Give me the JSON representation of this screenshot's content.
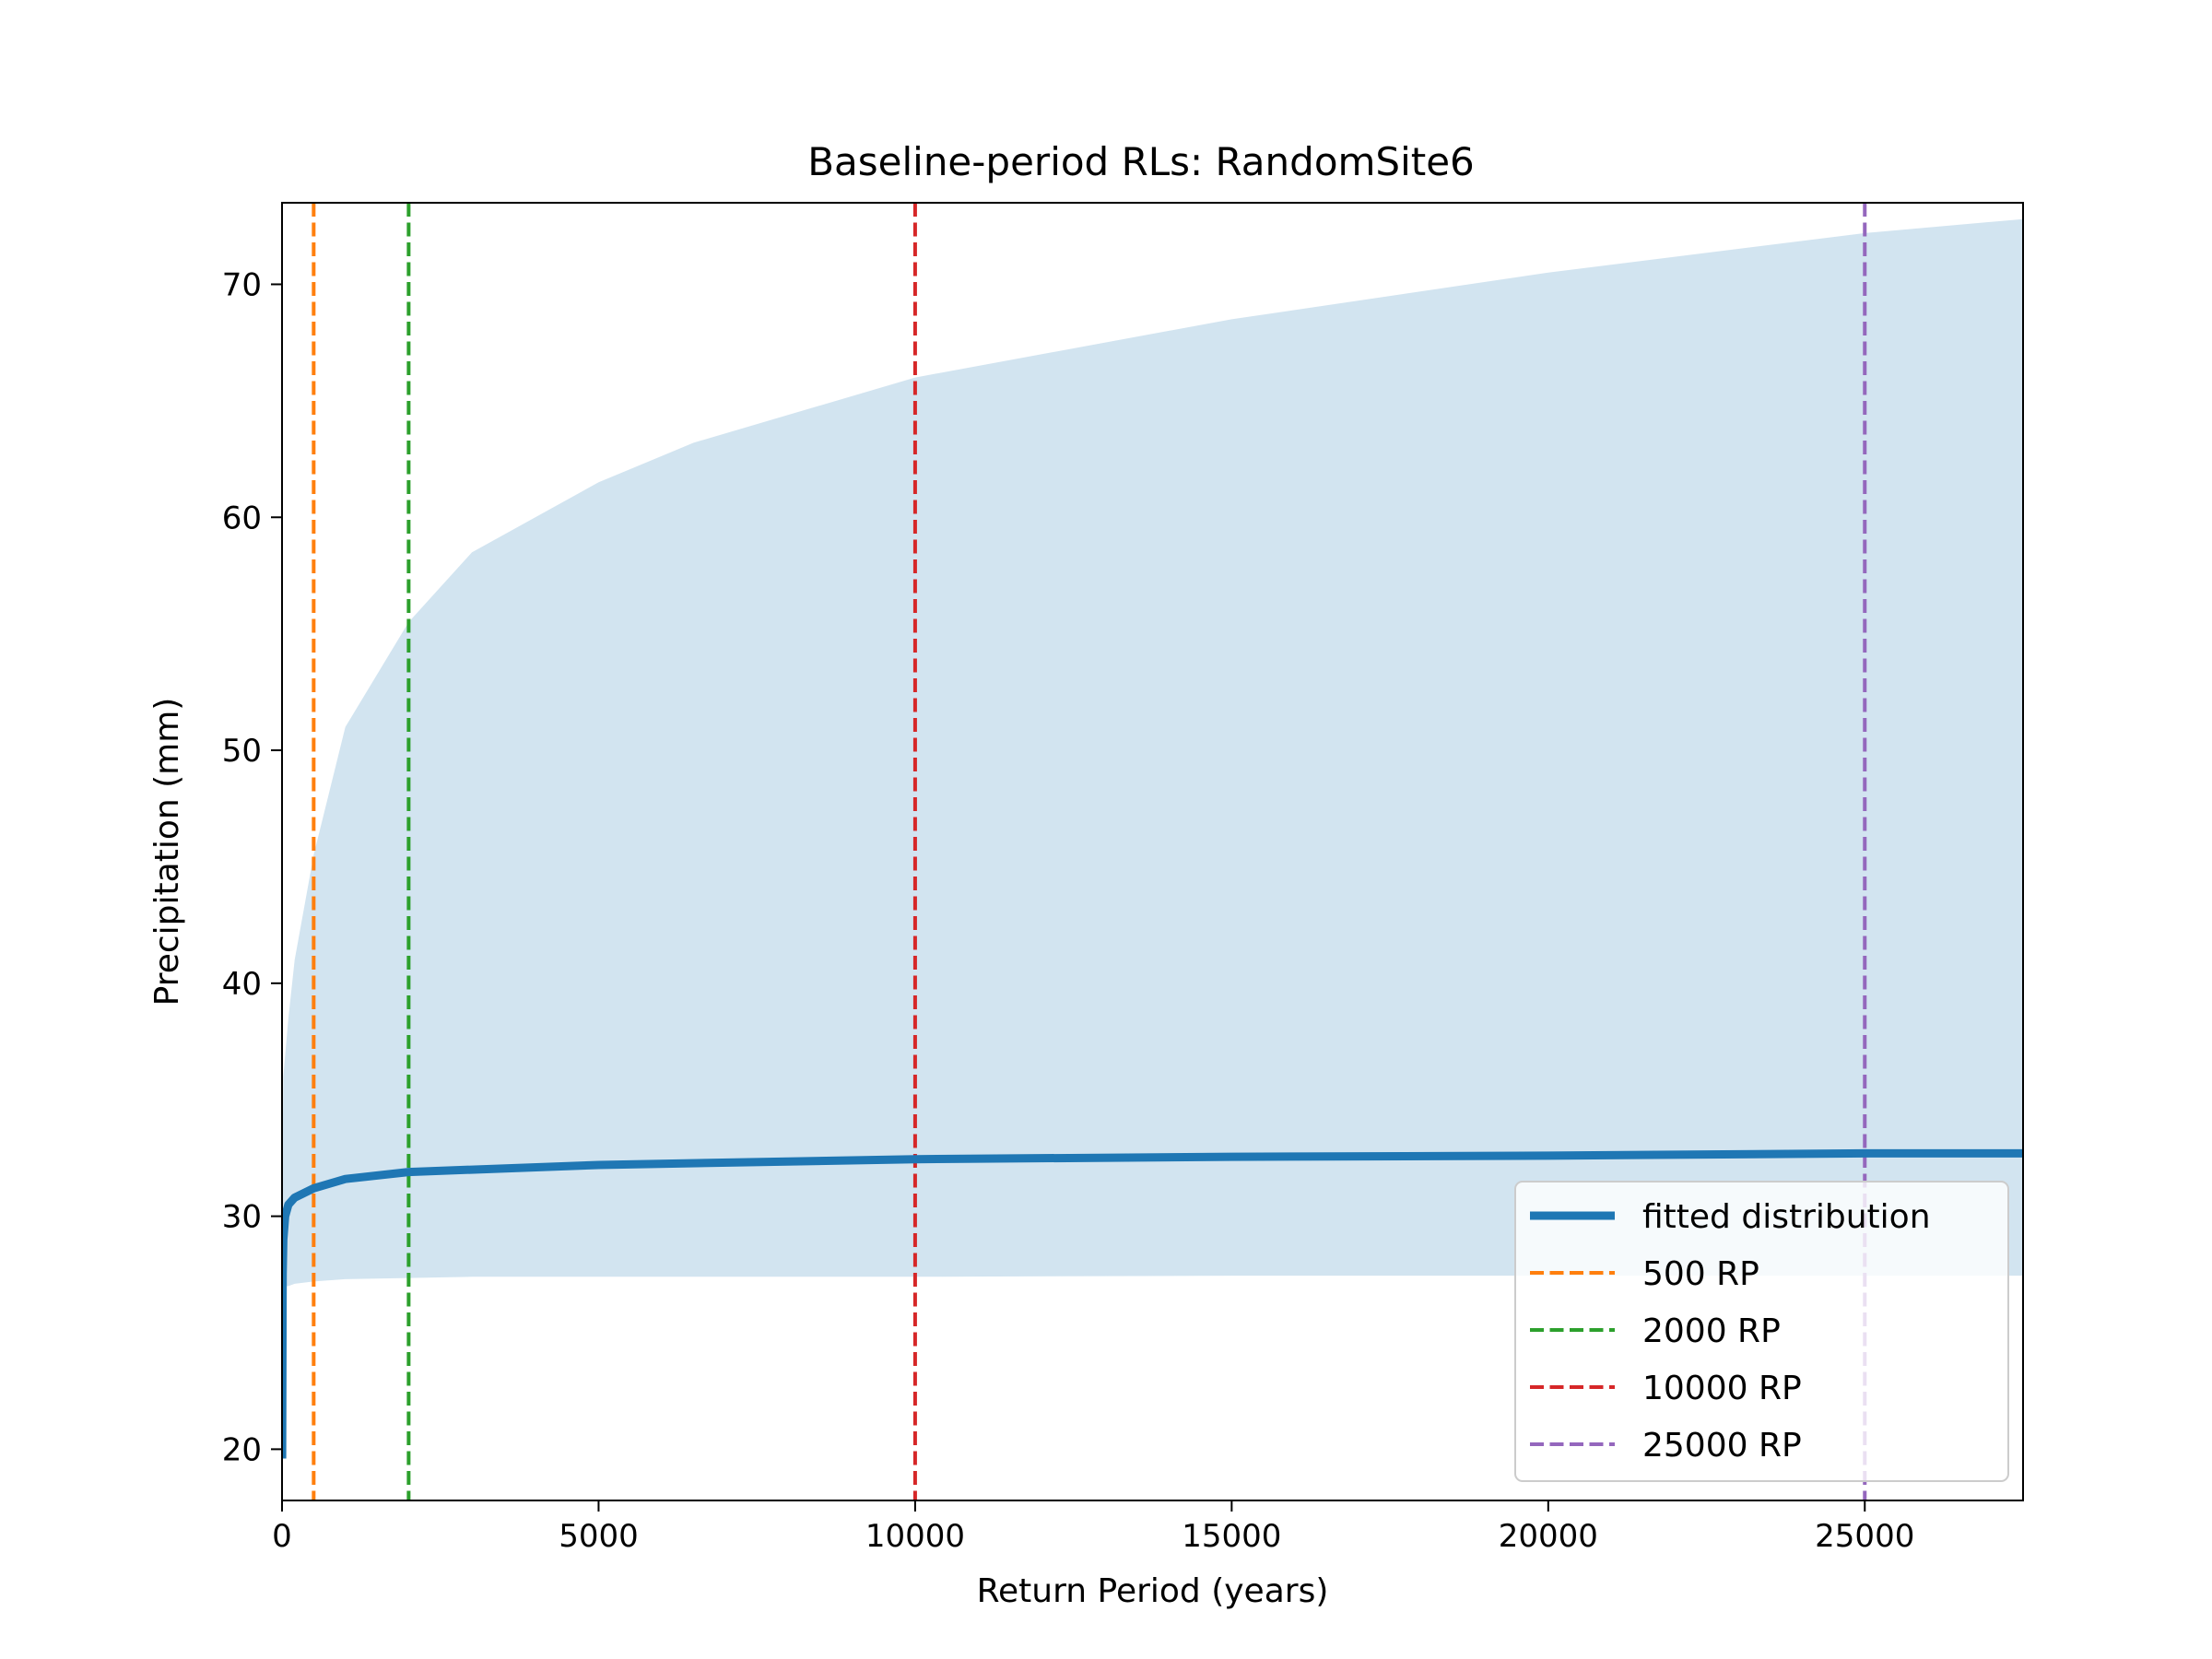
{
  "chart_data": {
    "type": "line",
    "title": "Baseline-period RLs: RandomSite6",
    "xlabel": "Return Period (years)",
    "ylabel": "Precipitation (mm)",
    "xlim": [
      0,
      27500
    ],
    "ylim": [
      17.8,
      73.5
    ],
    "x_ticks": [
      0,
      5000,
      10000,
      15000,
      20000,
      25000
    ],
    "y_ticks": [
      20,
      30,
      40,
      50,
      60,
      70
    ],
    "grid": false,
    "legend_position": "lower-right",
    "fitted": {
      "name": "fitted distribution",
      "color": "#1f77b4",
      "x": [
        2,
        10,
        20,
        50,
        100,
        200,
        500,
        1000,
        2000,
        5000,
        10000,
        15000,
        20000,
        25000,
        27500
      ],
      "y": [
        19.6,
        27.5,
        29.0,
        30.0,
        30.5,
        30.8,
        31.2,
        31.6,
        31.9,
        32.2,
        32.45,
        32.55,
        32.6,
        32.7,
        32.7
      ]
    },
    "confidence_band": {
      "color": "#1f77b4",
      "opacity": 0.2,
      "x": [
        2,
        20,
        100,
        200,
        500,
        1000,
        2000,
        3000,
        5000,
        6500,
        10000,
        15000,
        20000,
        25000,
        27500
      ],
      "upper": [
        30.5,
        36.0,
        38.5,
        41.0,
        45.5,
        51.0,
        55.5,
        58.5,
        61.5,
        63.2,
        66.0,
        68.5,
        70.5,
        72.2,
        72.8
      ],
      "lower": [
        29.5,
        27.0,
        27.0,
        27.1,
        27.2,
        27.3,
        27.35,
        27.4,
        27.4,
        27.4,
        27.4,
        27.45,
        27.45,
        27.45,
        27.45
      ]
    },
    "vlines": [
      {
        "x": 500,
        "name": "500 RP",
        "color": "#ff7f0e"
      },
      {
        "x": 2000,
        "name": "2000 RP",
        "color": "#2ca02c"
      },
      {
        "x": 10000,
        "name": "10000 RP",
        "color": "#d62728"
      },
      {
        "x": 25000,
        "name": "25000 RP",
        "color": "#9467bd"
      }
    ]
  }
}
